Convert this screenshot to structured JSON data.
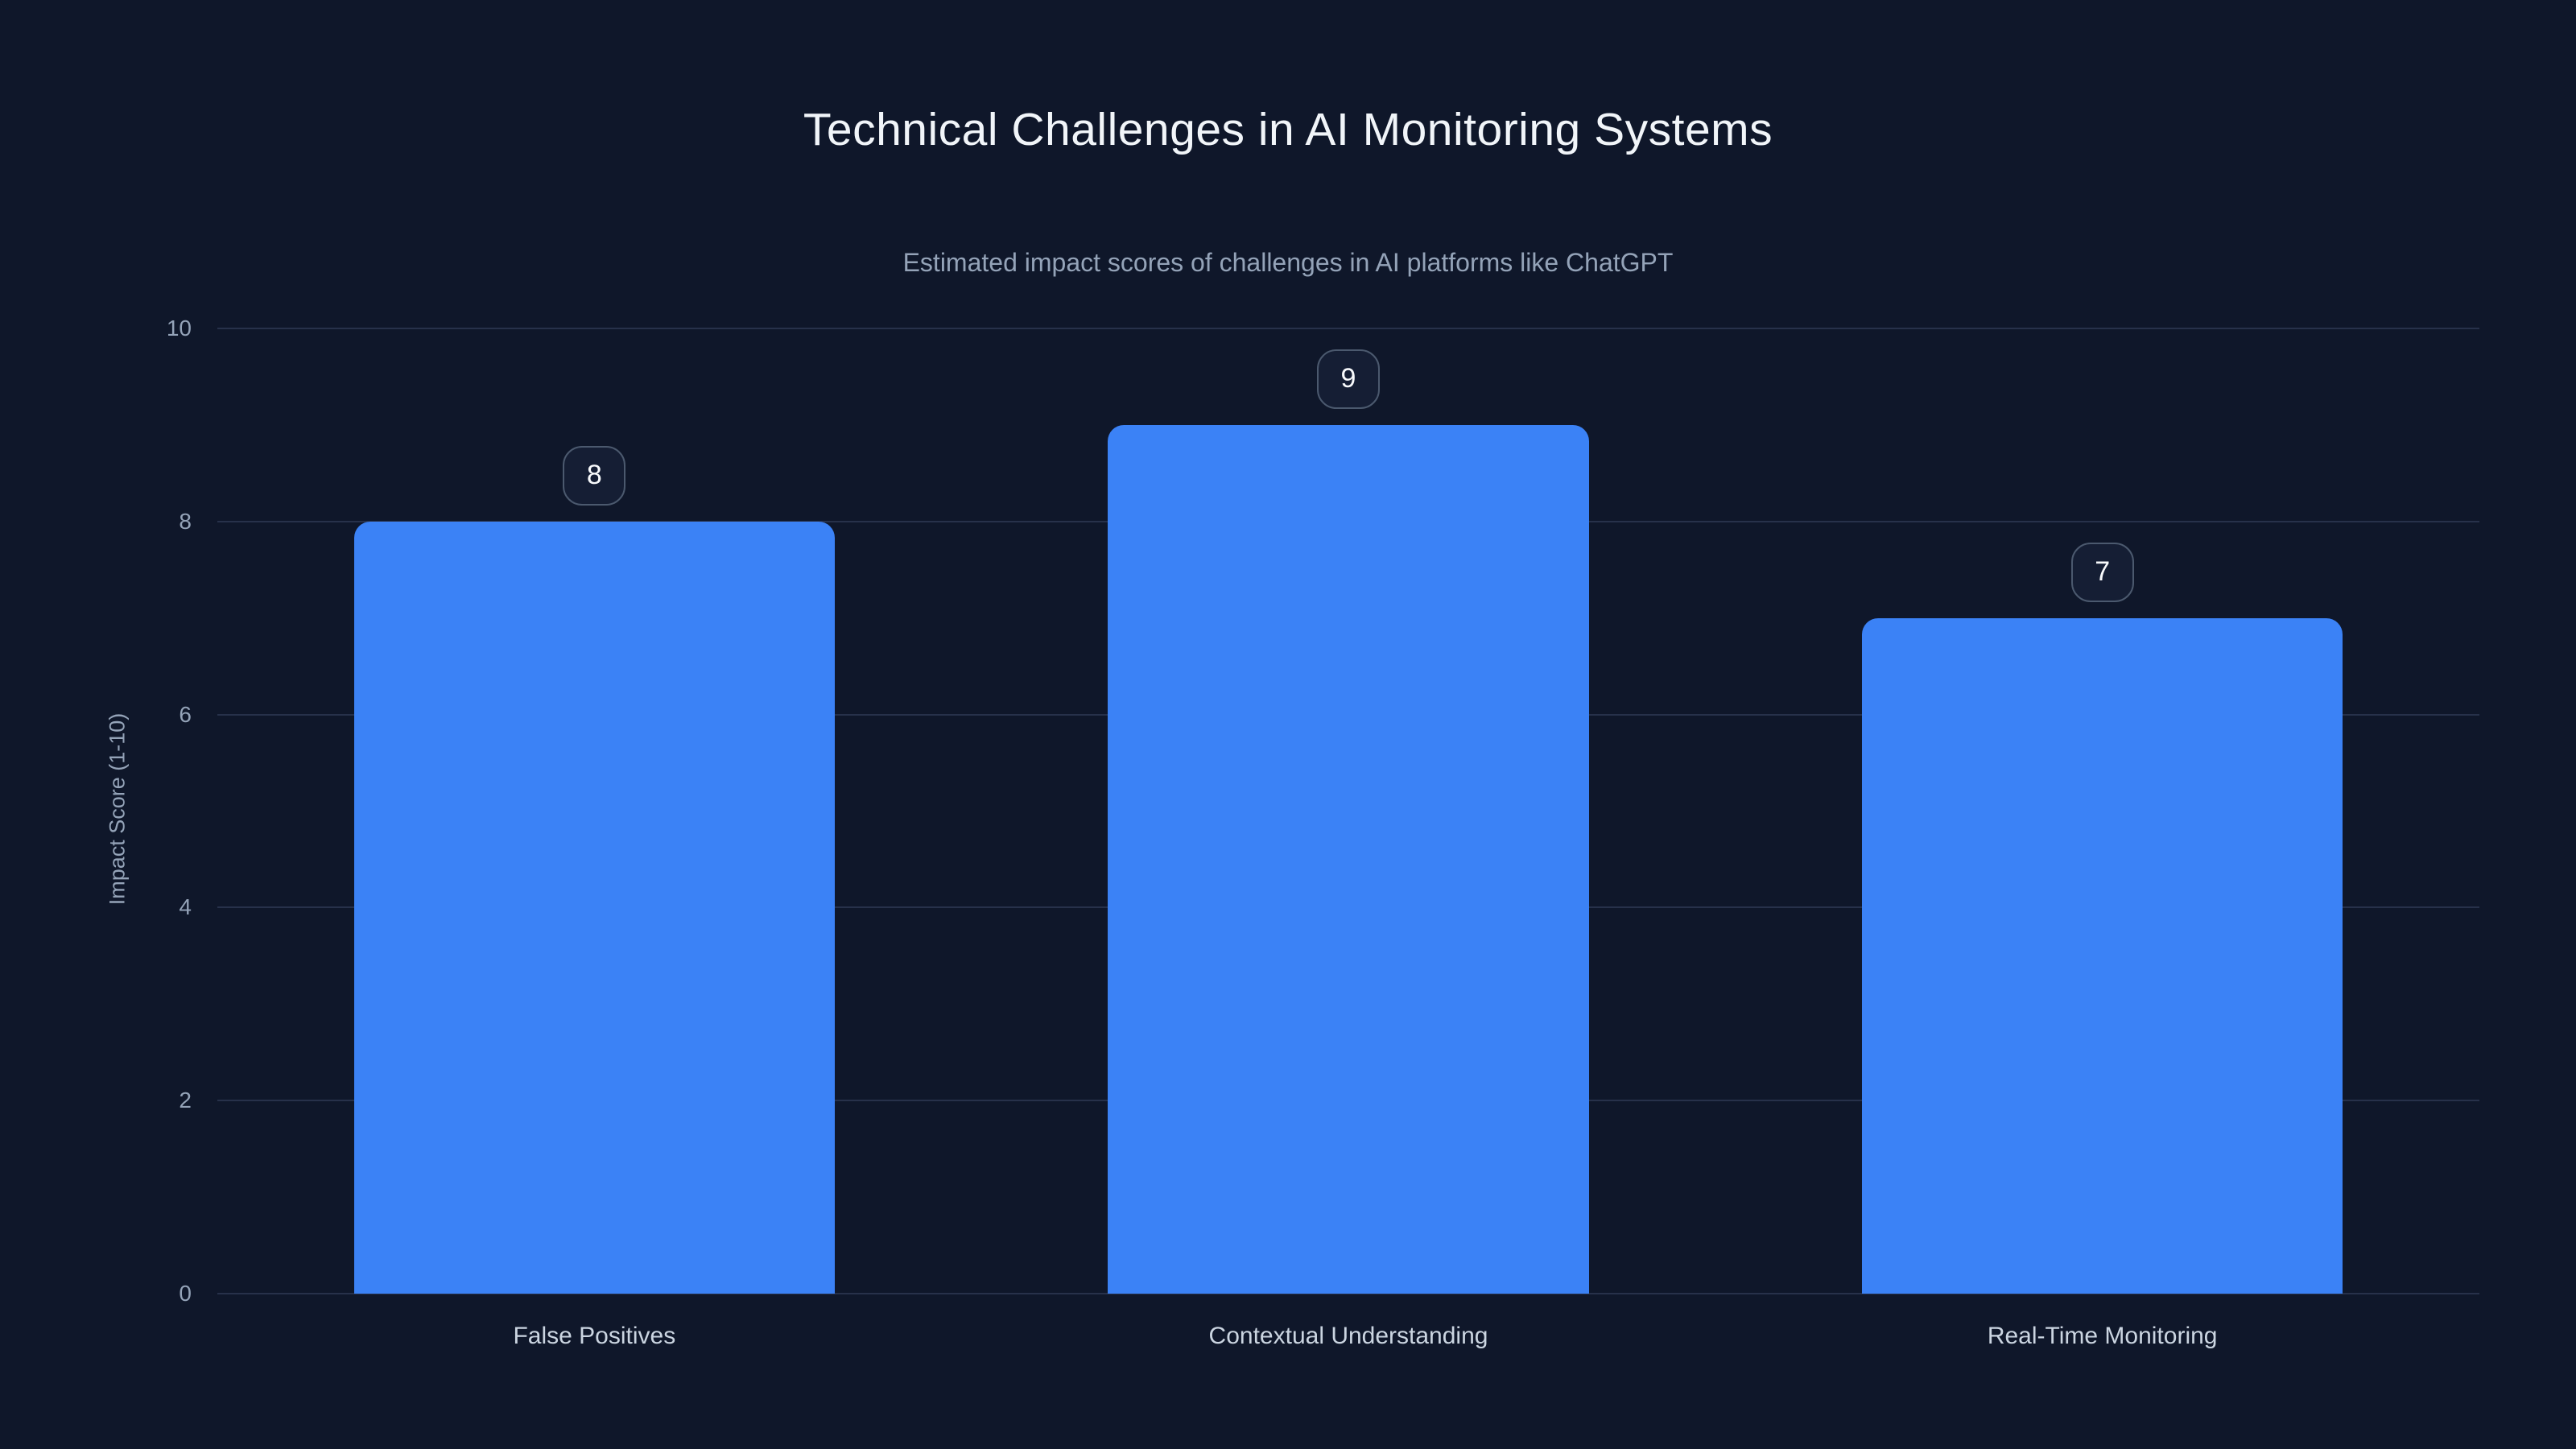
{
  "colors": {
    "background": "#0f172a",
    "bar_fill": "#3b82f6",
    "gridline": "#27314a",
    "axis_tick_text": "#94a3b8",
    "category_text": "#cbd5e1",
    "title_text": "#f1f5f9",
    "subtitle_text": "#94a3b8",
    "badge_border": "#4b596e",
    "badge_background": "#151e34",
    "badge_text": "#f8fafc"
  },
  "chart_data": {
    "type": "bar",
    "title": "Technical Challenges in AI Monitoring Systems",
    "subtitle": "Estimated impact scores of challenges in AI platforms like ChatGPT",
    "categories": [
      "False Positives",
      "Contextual Understanding",
      "Real-Time Monitoring"
    ],
    "values": [
      8,
      9,
      7
    ],
    "data_labels": [
      "8",
      "9",
      "7"
    ],
    "xlabel": "",
    "ylabel": "Impact Score (1-10)",
    "ylim": [
      0,
      10
    ],
    "yticks": [
      0,
      2,
      4,
      6,
      8,
      10
    ],
    "grid": true,
    "legend": false,
    "legend_position": "none",
    "orientation": "vertical"
  }
}
